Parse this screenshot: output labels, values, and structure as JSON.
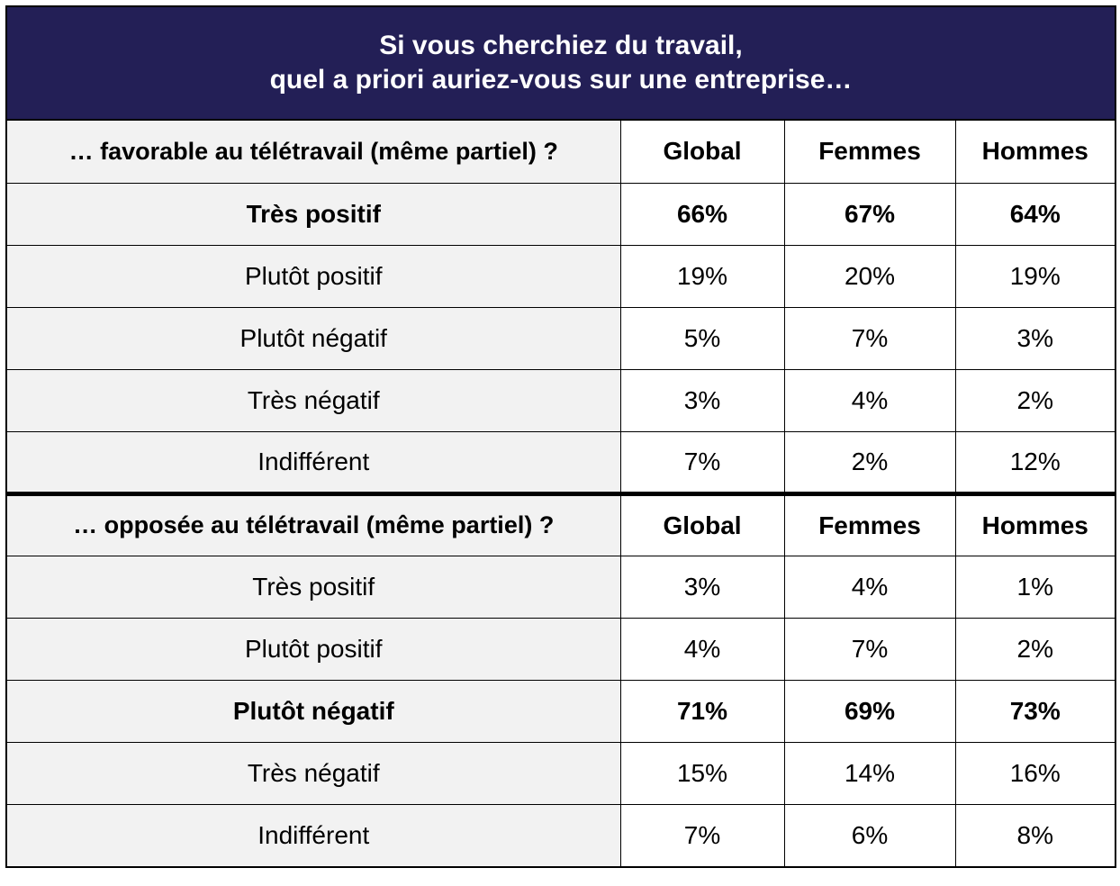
{
  "title": {
    "line1": "Si vous cherchiez du travail,",
    "line2": "quel a priori auriez-vous sur une entreprise…"
  },
  "colors": {
    "header_bg": "#231f56",
    "label_bg": "#f2f2f2"
  },
  "chart_data": {
    "type": "table",
    "columns": [
      "Global",
      "Femmes",
      "Hommes"
    ],
    "sections": [
      {
        "heading": "… favorable au télétravail (même partiel) ?",
        "columns": [
          "Global",
          "Femmes",
          "Hommes"
        ],
        "rows": [
          {
            "label": "Très positif",
            "values": [
              "66%",
              "67%",
              "64%"
            ]
          },
          {
            "label": "Plutôt positif",
            "values": [
              "19%",
              "20%",
              "19%"
            ]
          },
          {
            "label": "Plutôt négatif",
            "values": [
              "5%",
              "7%",
              "3%"
            ]
          },
          {
            "label": "Très négatif",
            "values": [
              "3%",
              "4%",
              "2%"
            ]
          },
          {
            "label": "Indifférent",
            "values": [
              "7%",
              "2%",
              "12%"
            ]
          }
        ]
      },
      {
        "heading": "… opposée au télétravail (même partiel) ?",
        "columns": [
          "Global",
          "Femmes",
          "Hommes"
        ],
        "rows": [
          {
            "label": "Très positif",
            "values": [
              "3%",
              "4%",
              "1%"
            ]
          },
          {
            "label": "Plutôt positif",
            "values": [
              "4%",
              "7%",
              "2%"
            ]
          },
          {
            "label": "Plutôt négatif",
            "values": [
              "71%",
              "69%",
              "73%"
            ]
          },
          {
            "label": "Très négatif",
            "values": [
              "15%",
              "14%",
              "16%"
            ]
          },
          {
            "label": "Indifférent",
            "values": [
              "7%",
              "6%",
              "8%"
            ]
          }
        ]
      }
    ]
  }
}
